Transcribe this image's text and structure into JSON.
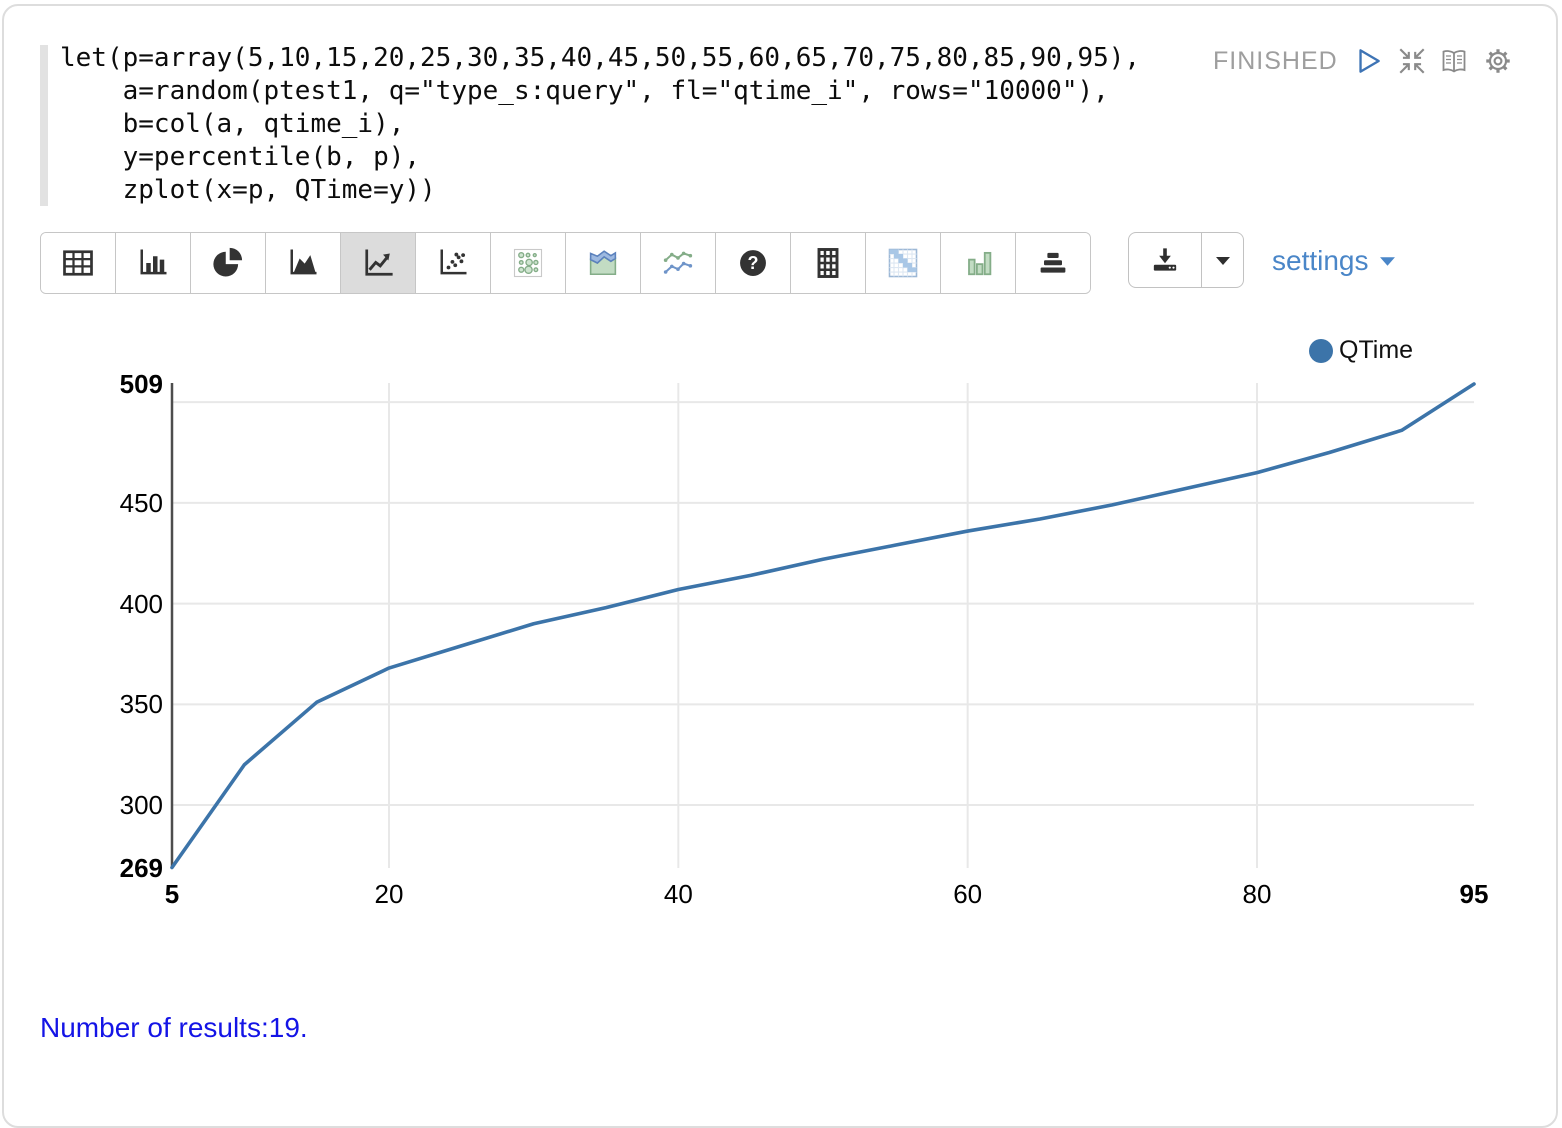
{
  "code": {
    "text": "let(p=array(5,10,15,20,25,30,35,40,45,50,55,60,65,70,75,80,85,90,95),\n    a=random(ptest1, q=\"type_s:query\", fl=\"qtime_i\", rows=\"10000\"),\n    b=col(a, qtime_i),\n    y=percentile(b, p),\n    zplot(x=p, QTime=y))"
  },
  "status": {
    "label": "FINISHED"
  },
  "paragraph_controls": {
    "icons": [
      "play-icon",
      "shrink-icon",
      "notebook-icon",
      "gear-icon"
    ]
  },
  "toolbar": {
    "buttons": [
      {
        "name": "table",
        "selected": false
      },
      {
        "name": "bar-chart",
        "selected": false
      },
      {
        "name": "pie-chart",
        "selected": false
      },
      {
        "name": "area-chart",
        "selected": false
      },
      {
        "name": "line-chart",
        "selected": true
      },
      {
        "name": "scatter-chart",
        "selected": false
      },
      {
        "name": "bubble-chart",
        "selected": false
      },
      {
        "name": "stacked-area-chart",
        "selected": false
      },
      {
        "name": "multi-line-chart",
        "selected": false
      },
      {
        "name": "help",
        "selected": false
      },
      {
        "name": "pivot-grid",
        "selected": false
      },
      {
        "name": "heatmap",
        "selected": false
      },
      {
        "name": "grouped-bar-chart",
        "selected": false
      },
      {
        "name": "horizontal-bar-chart",
        "selected": false
      }
    ],
    "download_icon": "download-icon",
    "download_caret_icon": "caret-down-icon",
    "settings_label": "settings"
  },
  "chart_data": {
    "type": "line",
    "title": "",
    "xlabel": "",
    "ylabel": "",
    "x": [
      5,
      10,
      15,
      20,
      25,
      30,
      35,
      40,
      45,
      50,
      55,
      60,
      65,
      70,
      75,
      80,
      85,
      90,
      95
    ],
    "series": [
      {
        "name": "QTime",
        "color": "#3c74a9",
        "values": [
          269,
          320,
          351,
          368,
          379,
          390,
          398,
          407,
          414,
          422,
          429,
          436,
          442,
          449,
          457,
          465,
          475,
          486,
          509
        ]
      }
    ],
    "xlim": [
      5,
      95
    ],
    "ylim": [
      269,
      509
    ],
    "x_ticks": [
      5,
      20,
      40,
      60,
      80,
      95
    ],
    "y_ticks": [
      269,
      300,
      350,
      400,
      450,
      509
    ],
    "x_gridlines": [
      20,
      40,
      60,
      80
    ],
    "y_gridlines": [
      300,
      350,
      400,
      450,
      500
    ],
    "grid": true,
    "legend_position": "top-right",
    "colors": {
      "grid": "#e8e8e8",
      "axis": "#4d4d4d"
    }
  },
  "footer": {
    "results_text": "Number of results:19."
  }
}
